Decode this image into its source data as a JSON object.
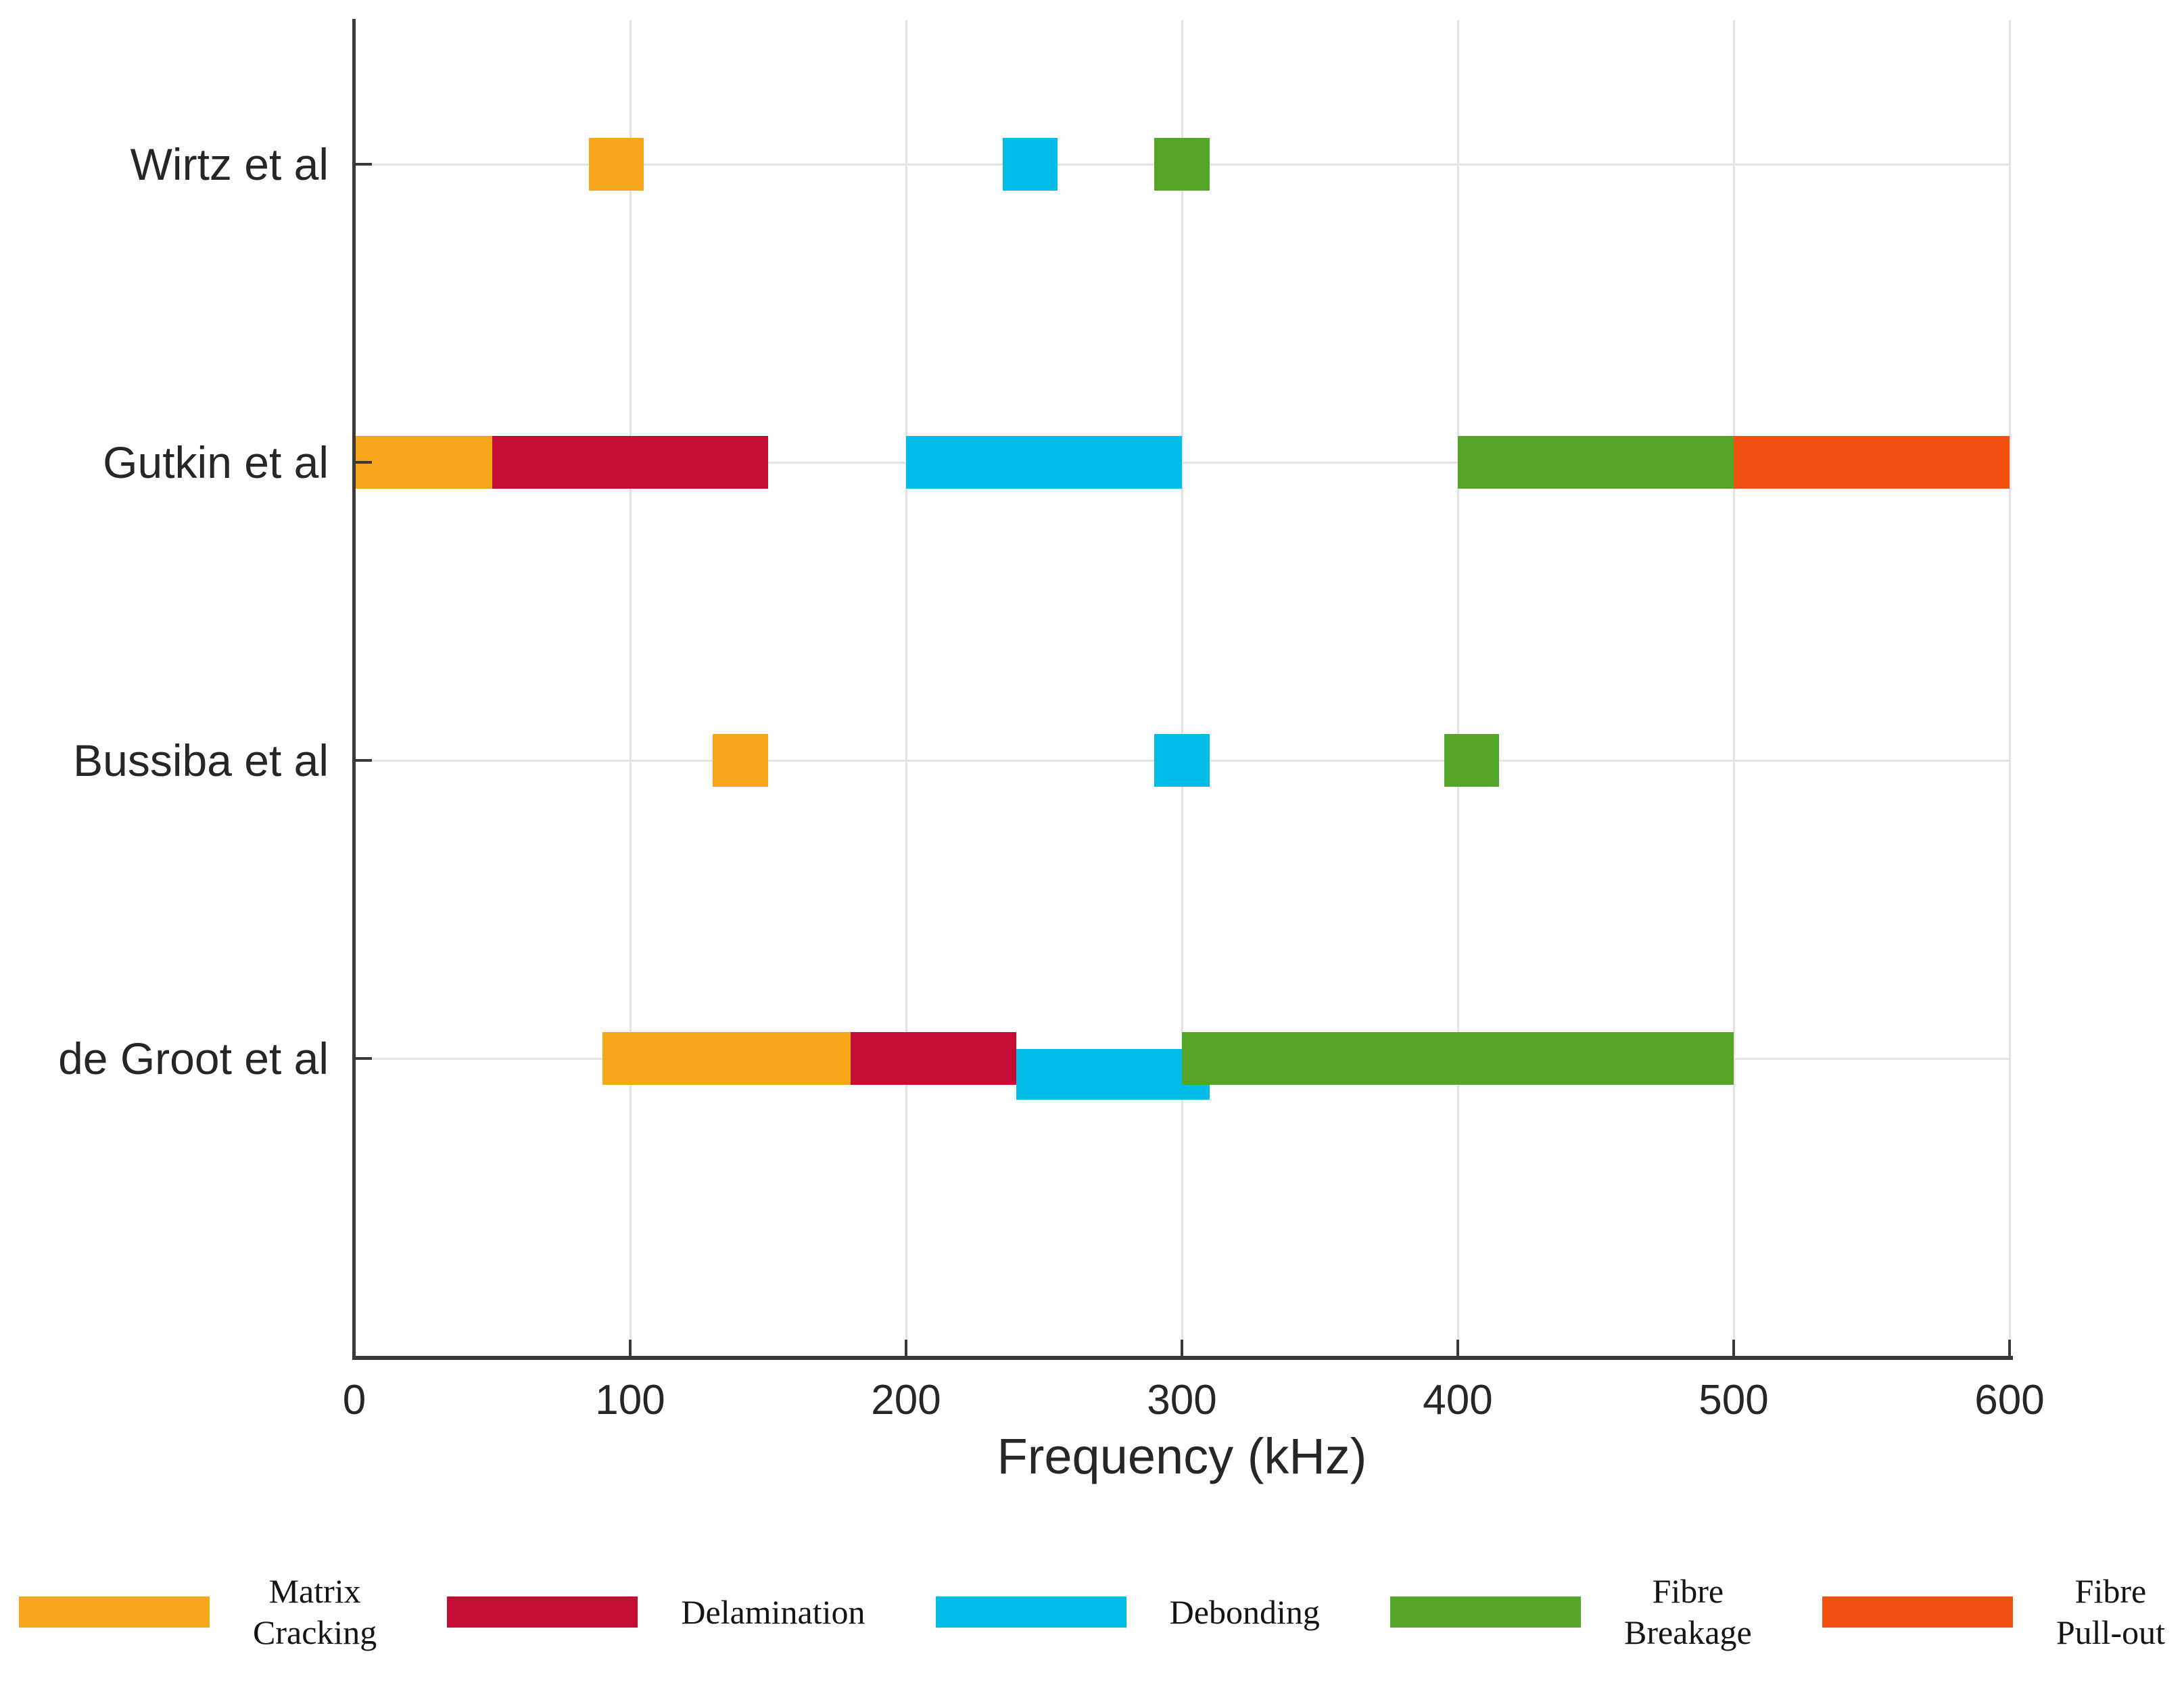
{
  "chart_data": {
    "type": "bar",
    "subtype": "horizontal-range-gantt",
    "title": "",
    "xlabel": "Frequency (kHz)",
    "ylabel": "",
    "xlim": [
      0,
      600
    ],
    "xticks": [
      0,
      100,
      200,
      300,
      400,
      500,
      600
    ],
    "grid": true,
    "legend_position": "bottom",
    "categories": [
      "Wirtz et al",
      "Gutkin et al",
      "Bussiba et al",
      "de Groot et al"
    ],
    "series": [
      {
        "name": "Matrix Cracking",
        "color": "#F7A61B",
        "ranges": [
          {
            "study": "Wirtz et al",
            "from": 85,
            "to": 105
          },
          {
            "study": "Gutkin et al",
            "from": 0,
            "to": 50
          },
          {
            "study": "Bussiba et al",
            "from": 130,
            "to": 150
          },
          {
            "study": "de Groot et al",
            "from": 90,
            "to": 180
          }
        ]
      },
      {
        "name": "Delamination",
        "color": "#C40D34",
        "ranges": [
          {
            "study": "Gutkin et al",
            "from": 50,
            "to": 150
          },
          {
            "study": "de Groot et al",
            "from": 180,
            "to": 240
          }
        ]
      },
      {
        "name": "Debonding",
        "color": "#00BDE7",
        "ranges": [
          {
            "study": "Wirtz et al",
            "from": 235,
            "to": 255
          },
          {
            "study": "Gutkin et al",
            "from": 200,
            "to": 300
          },
          {
            "study": "Bussiba et al",
            "from": 290,
            "to": 310
          },
          {
            "study": "de Groot et al",
            "from": 240,
            "to": 310,
            "offset_down": true
          }
        ]
      },
      {
        "name": "Fibre Breakage",
        "color": "#55A628",
        "ranges": [
          {
            "study": "Wirtz et al",
            "from": 290,
            "to": 310
          },
          {
            "study": "Gutkin et al",
            "from": 400,
            "to": 500
          },
          {
            "study": "Bussiba et al",
            "from": 395,
            "to": 415
          },
          {
            "study": "de Groot et al",
            "from": 300,
            "to": 500
          }
        ]
      },
      {
        "name": "Fibre Pull-out",
        "color": "#F25010",
        "ranges": [
          {
            "study": "Gutkin et al",
            "from": 500,
            "to": 600
          }
        ]
      }
    ],
    "colors": {
      "grid": "#E3E3E3",
      "axis": "#3A3A3A",
      "text": "#262626",
      "background": "#FFFFFF"
    }
  },
  "legend": {
    "items": [
      {
        "lines": [
          "Matrix",
          "Cracking"
        ],
        "color": "#F7A61B"
      },
      {
        "lines": [
          "Delamination"
        ],
        "color": "#C40D34"
      },
      {
        "lines": [
          "Debonding"
        ],
        "color": "#00BDE7"
      },
      {
        "lines": [
          "Fibre",
          "Breakage"
        ],
        "color": "#55A628"
      },
      {
        "lines": [
          "Fibre",
          "Pull-out"
        ],
        "color": "#F25010"
      }
    ]
  }
}
